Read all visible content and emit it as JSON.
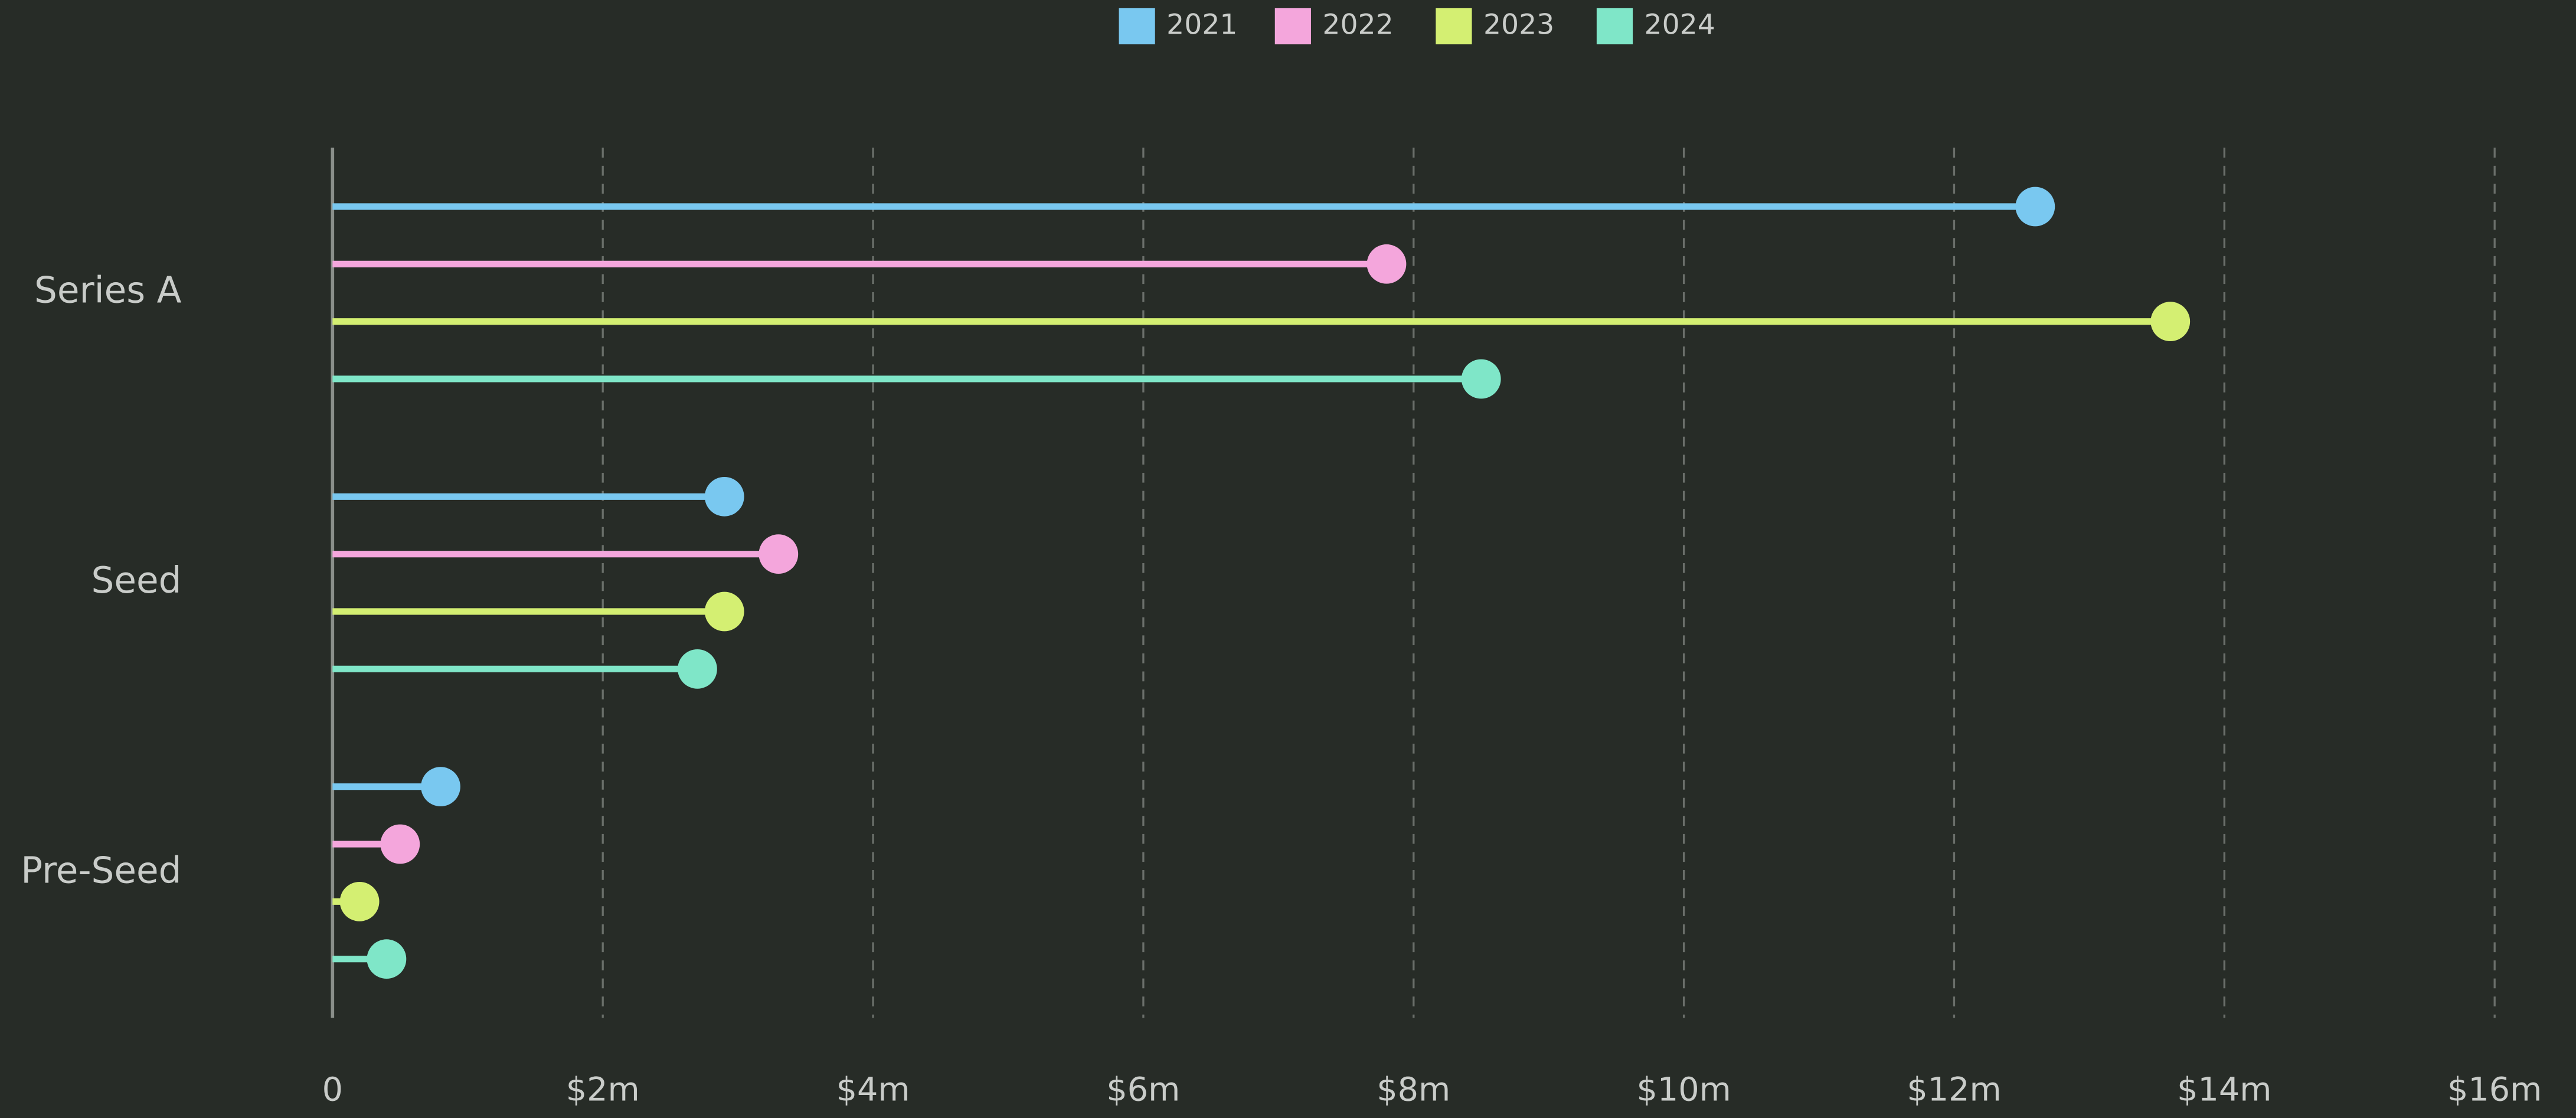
{
  "chart_data": {
    "type": "lollipop",
    "categories": [
      "Series A",
      "Seed",
      "Pre-Seed"
    ],
    "series": [
      {
        "name": "2021",
        "color": "#79c8f0",
        "values": [
          12.6,
          2.9,
          0.8
        ]
      },
      {
        "name": "2022",
        "color": "#f4a6dc",
        "values": [
          7.8,
          3.3,
          0.5
        ]
      },
      {
        "name": "2023",
        "color": "#d4ef72",
        "values": [
          13.6,
          2.9,
          0.2
        ]
      },
      {
        "name": "2024",
        "color": "#7fe6c8",
        "values": [
          8.5,
          2.7,
          0.4
        ]
      }
    ],
    "xlim": [
      0,
      16
    ],
    "xticks": [
      0,
      {
        "value": 2,
        "label": "$2m"
      },
      {
        "value": 4,
        "label": "$4m"
      },
      {
        "value": 6,
        "label": "$6m"
      },
      {
        "value": 8,
        "label": "$8m"
      },
      {
        "value": 10,
        "label": "$10m"
      },
      {
        "value": 12,
        "label": "$12m"
      },
      {
        "value": 14,
        "label": "$14m"
      },
      {
        "value": 16,
        "label": "$16m"
      }
    ],
    "grid": true,
    "legend": "top"
  }
}
